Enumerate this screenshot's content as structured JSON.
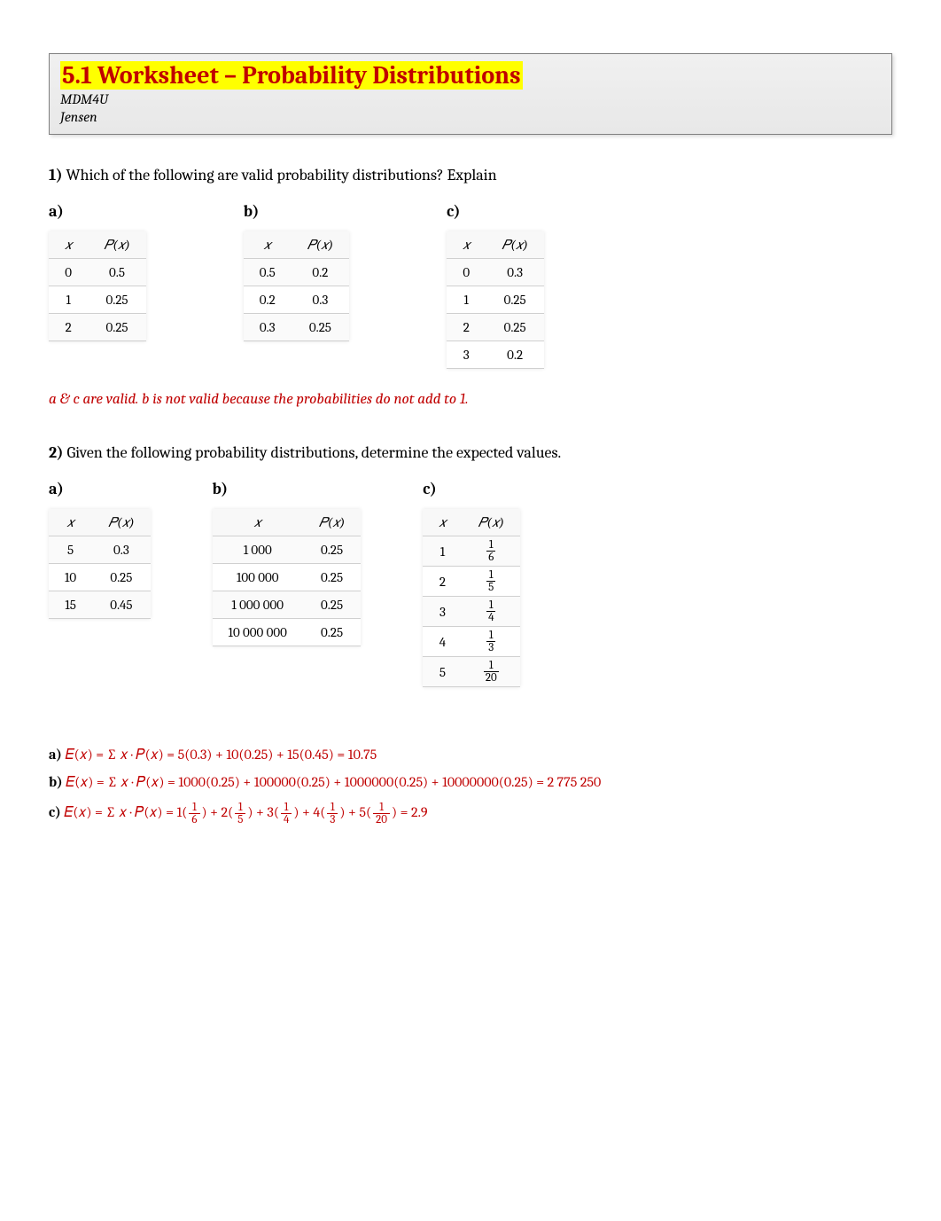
{
  "header": {
    "title": "5.1 Worksheet – Probability Distributions",
    "course": "MDM4U",
    "author": "Jensen"
  },
  "q1": {
    "number": "1)",
    "text": " Which of the following are valid probability distributions? Explain",
    "labels": {
      "a": "a)",
      "b": "b)",
      "c": "c)"
    },
    "headers": {
      "x": "𝑥",
      "px": "𝑃(𝑥)"
    },
    "tables": {
      "a": {
        "rows": [
          [
            "0",
            "0.5"
          ],
          [
            "1",
            "0.25"
          ],
          [
            "2",
            "0.25"
          ]
        ]
      },
      "b": {
        "rows": [
          [
            "0.5",
            "0.2"
          ],
          [
            "0.2",
            "0.3"
          ],
          [
            "0.3",
            "0.25"
          ]
        ]
      },
      "c": {
        "rows": [
          [
            "0",
            "0.3"
          ],
          [
            "1",
            "0.25"
          ],
          [
            "2",
            "0.25"
          ],
          [
            "3",
            "0.2"
          ]
        ]
      }
    },
    "answer": "a & c are valid. b is not valid because the probabilities do not add to 1."
  },
  "q2": {
    "number": "2)",
    "text": " Given the following probability distributions, determine the expected values.",
    "labels": {
      "a": "a)",
      "b": "b)",
      "c": "c)"
    },
    "headers": {
      "x": "𝑥",
      "px": "𝑃(𝑥)"
    },
    "tables": {
      "a": {
        "rows": [
          [
            "5",
            "0.3"
          ],
          [
            "10",
            "0.25"
          ],
          [
            "15",
            "0.45"
          ]
        ]
      },
      "b": {
        "rows": [
          [
            "1 000",
            "0.25"
          ],
          [
            "100 000",
            "0.25"
          ],
          [
            "1 000 000",
            "0.25"
          ],
          [
            "10 000 000",
            "0.25"
          ]
        ]
      },
      "c": {
        "rows": [
          {
            "x": "1",
            "num": "1",
            "den": "6"
          },
          {
            "x": "2",
            "num": "1",
            "den": "5"
          },
          {
            "x": "3",
            "num": "1",
            "den": "4"
          },
          {
            "x": "4",
            "num": "1",
            "den": "3"
          },
          {
            "x": "5",
            "num": "1",
            "den": "20"
          }
        ]
      }
    },
    "calcs": {
      "a": {
        "label": "a) ",
        "expr": "𝐸(𝑥) = ∑ 𝑥 · 𝑃(𝑥) = 5(0.3) + 10(0.25) + 15(0.45) = 10.75"
      },
      "b": {
        "label": "b) ",
        "expr": "𝐸(𝑥) = ∑ 𝑥 · 𝑃(𝑥) = 1000(0.25) + 100000(0.25) + 1000000(0.25) + 10000000(0.25) = 2 775 250"
      },
      "c": {
        "label": "c) ",
        "prefix": "𝐸(𝑥) = ∑ 𝑥 · 𝑃(𝑥) = 1",
        "terms": [
          {
            "n": "1",
            "d": "6"
          },
          {
            "plus": " + 2",
            "n": "1",
            "d": "5"
          },
          {
            "plus": " + 3",
            "n": "1",
            "d": "4"
          },
          {
            "plus": " + 4",
            "n": "1",
            "d": "3"
          },
          {
            "plus": " + 5",
            "n": "1",
            "d": "20"
          }
        ],
        "suffix": " = 2.9"
      }
    }
  },
  "colors": {
    "highlight": "#ffff00",
    "title_text": "#c00000",
    "answer_text": "#c00000",
    "background": "#ffffff"
  }
}
